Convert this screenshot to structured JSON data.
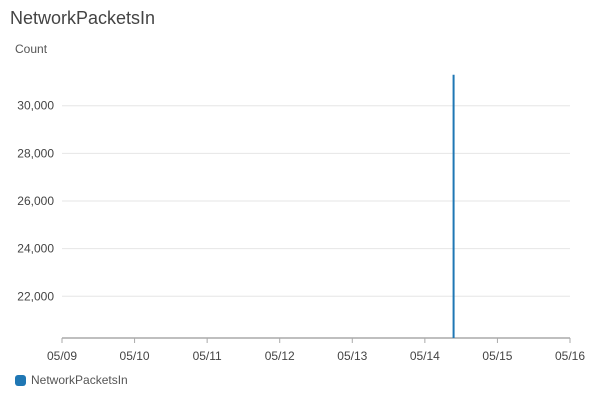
{
  "chart_data": {
    "type": "line",
    "title": "NetworkPacketsIn",
    "ylabel": "Count",
    "xlabel": "",
    "x_ticks": [
      "05/09",
      "05/10",
      "05/11",
      "05/12",
      "05/13",
      "05/14",
      "05/15",
      "05/16"
    ],
    "y_ticks": [
      22000,
      24000,
      26000,
      28000,
      30000
    ],
    "y_tick_labels": [
      "22,000",
      "24,000",
      "26,000",
      "28,000",
      "30,000"
    ],
    "ylim": [
      20250,
      31500
    ],
    "xlim": [
      "05/09",
      "05/16"
    ],
    "grid": "horizontal",
    "legend_position": "bottom-left",
    "series": [
      {
        "name": "NetworkPacketsIn",
        "color": "#1f77b4",
        "x": [
          "05/09 00:00",
          "05/14 09:00",
          "05/14 09:30",
          "05/14 10:00",
          "05/16 00:00"
        ],
        "y": [
          null,
          null,
          31300,
          null,
          null
        ]
      }
    ]
  }
}
